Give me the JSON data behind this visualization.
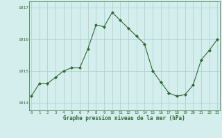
{
  "x": [
    0,
    1,
    2,
    3,
    4,
    5,
    6,
    7,
    8,
    9,
    10,
    11,
    12,
    13,
    14,
    15,
    16,
    17,
    18,
    19,
    20,
    21,
    22,
    23
  ],
  "y": [
    1014.2,
    1014.6,
    1014.6,
    1014.8,
    1015.0,
    1015.1,
    1015.1,
    1015.7,
    1016.45,
    1016.4,
    1016.85,
    1016.6,
    1016.35,
    1016.1,
    1015.85,
    1015.0,
    1014.65,
    1014.3,
    1014.2,
    1014.25,
    1014.55,
    1015.35,
    1015.65,
    1016.0
  ],
  "line_color": "#2d6a2d",
  "marker_color": "#2d6a2d",
  "bg_color": "#d4eeee",
  "grid_color": "#aacccc",
  "xlabel": "Graphe pression niveau de la mer (hPa)",
  "xlabel_color": "#2d6a2d",
  "tick_color": "#2d6a2d",
  "ylim_min": 1013.75,
  "ylim_max": 1017.2,
  "ytick_values": [
    1014,
    1015,
    1016,
    1017
  ],
  "ytick_labels": [
    "1014",
    "1015",
    "1016",
    "1017"
  ]
}
